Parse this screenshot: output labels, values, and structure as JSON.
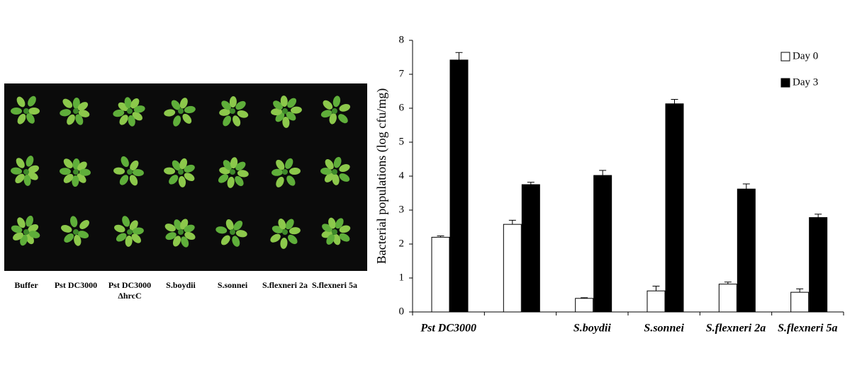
{
  "panel_a": {
    "labels": [
      [
        "Buffer"
      ],
      [
        "Pst DC3000"
      ],
      [
        "Pst DC3000",
        "ΔhrcC"
      ],
      [
        "S.boydii"
      ],
      [
        "S.sonnei"
      ],
      [
        "S.flexneri 2a"
      ],
      [
        "S.flexneri 5a"
      ]
    ]
  },
  "chart_data": {
    "type": "bar",
    "y_label": "Bacterial populations (log cfu/mg)",
    "categories": [
      "Pst DC3000",
      null,
      "S.boydii",
      "S.sonnei",
      "S.flexneri 2a",
      "S.flexneri 5a"
    ],
    "series": [
      {
        "name": "Day 0",
        "color": "#ffffff",
        "values": [
          2.2,
          2.58,
          0.4,
          0.62,
          0.82,
          0.58
        ],
        "errors": [
          0.04,
          0.12,
          0.02,
          0.14,
          0.06,
          0.1
        ]
      },
      {
        "name": "Day 3",
        "color": "#000000",
        "values": [
          7.42,
          3.75,
          4.02,
          6.13,
          3.62,
          2.78
        ],
        "errors": [
          0.22,
          0.07,
          0.15,
          0.13,
          0.15,
          0.1
        ]
      }
    ],
    "ylim": [
      0,
      8
    ],
    "yticks": [
      0,
      1,
      2,
      3,
      4,
      5,
      6,
      7,
      8
    ],
    "grid": false,
    "legend": "top-right"
  }
}
